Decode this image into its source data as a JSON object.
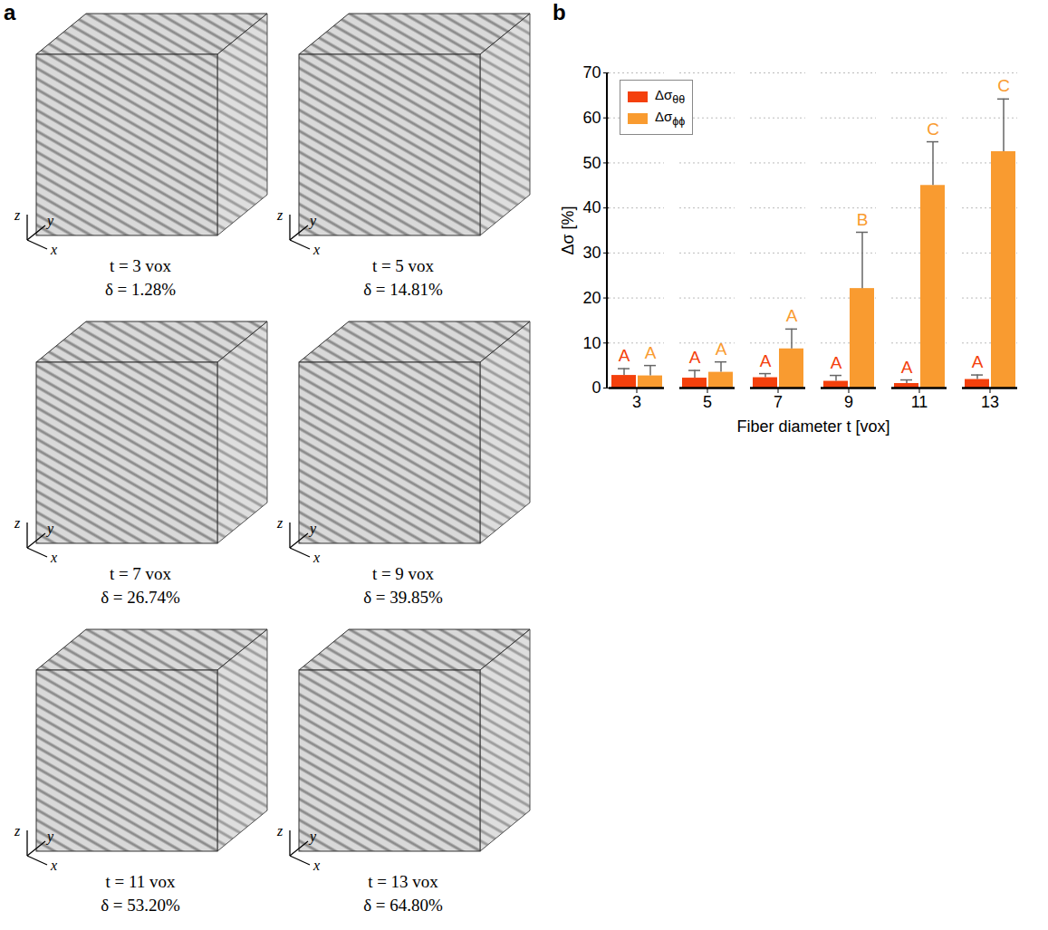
{
  "panel_a": {
    "label": "a",
    "axis_letters": {
      "x": "x",
      "y": "y",
      "z": "z"
    },
    "items": [
      {
        "t": "t = 3 vox",
        "delta": "δ = 1.28%"
      },
      {
        "t": "t = 5 vox",
        "delta": "δ = 14.81%"
      },
      {
        "t": "t = 7 vox",
        "delta": "δ = 26.74%"
      },
      {
        "t": "t = 9 vox",
        "delta": "δ = 39.85%"
      },
      {
        "t": "t = 11 vox",
        "delta": "δ = 53.20%"
      },
      {
        "t": "t = 13 vox",
        "delta": "δ = 64.80%"
      }
    ]
  },
  "chart_data": {
    "label": "b",
    "type": "bar",
    "categories": [
      3,
      5,
      7,
      9,
      11,
      13
    ],
    "x_label": "Fiber diameter t [vox]",
    "y_label": "Δσ [%]",
    "ylim": [
      0,
      70
    ],
    "yticks": [
      0,
      10,
      20,
      30,
      40,
      50,
      60,
      70
    ],
    "grid": true,
    "legend": "top-left",
    "series": [
      {
        "name": "Δσθθ",
        "color": "#f4400c",
        "values": [
          2.8,
          2.2,
          2.3,
          1.5,
          1.0,
          1.9
        ],
        "errors": [
          1.5,
          1.7,
          0.9,
          1.3,
          0.8,
          1.0
        ],
        "letters": [
          "A",
          "A",
          "A",
          "A",
          "A",
          "A"
        ]
      },
      {
        "name": "Δσϕϕ",
        "color": "#f99b30",
        "values": [
          2.7,
          3.5,
          8.7,
          22.1,
          45.0,
          52.5
        ],
        "errors": [
          2.3,
          2.3,
          4.4,
          12.5,
          9.7,
          11.7
        ],
        "letters": [
          "A",
          "A",
          "A",
          "B",
          "C",
          "C"
        ]
      }
    ]
  }
}
